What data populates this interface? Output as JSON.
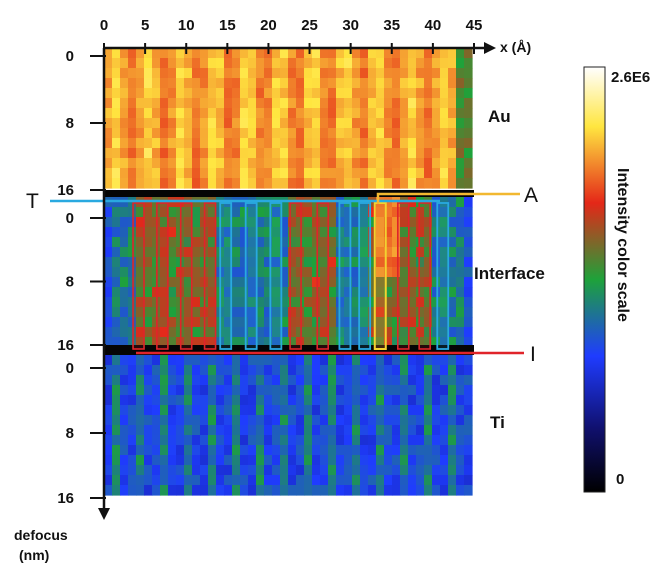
{
  "chart_data": {
    "type": "heatmap",
    "x_axis": {
      "label": "x (Å)",
      "range": [
        0,
        45
      ],
      "ticks": [
        "0",
        "5",
        "10",
        "15",
        "20",
        "25",
        "30",
        "35",
        "40",
        "45"
      ]
    },
    "y_axis": {
      "label_line1": "defocus",
      "label_line2": "(nm)"
    },
    "panels": [
      {
        "name": "Au",
        "y_ticks": [
          "0",
          "8",
          "16"
        ],
        "defocus_range": [
          0,
          16
        ],
        "colormap_level": "high"
      },
      {
        "name": "Interface",
        "y_ticks": [
          "0",
          "8",
          "16"
        ],
        "defocus_range": [
          0,
          16
        ],
        "colormap_level": "mixed"
      },
      {
        "name": "Ti",
        "y_ticks": [
          "0",
          "8",
          "16"
        ],
        "defocus_range": [
          0,
          16
        ],
        "colormap_level": "low"
      }
    ],
    "markers": [
      {
        "letter": "T",
        "color": "#29a9e0"
      },
      {
        "letter": "A",
        "color": "#f2b830"
      },
      {
        "letter": "I",
        "color": "#e0242a"
      }
    ],
    "column_boxes": {
      "red_x_centers": [
        4.2,
        7.1,
        10,
        12.9,
        23.3,
        26.6,
        33.6,
        36.4,
        39
      ],
      "blue_x_centers": [
        14.8,
        17.9,
        20.9,
        29.3,
        31.7,
        41.2
      ],
      "yellow_x_centers": [
        33.6
      ]
    },
    "colorbar": {
      "title": "Intensity color scale",
      "max_label": "2.6E6",
      "min_label": "0",
      "colors": [
        "#000000",
        "#10106e",
        "#1f3cff",
        "#1ea23a",
        "#e42718",
        "#ffe640",
        "#ffffff"
      ]
    }
  }
}
